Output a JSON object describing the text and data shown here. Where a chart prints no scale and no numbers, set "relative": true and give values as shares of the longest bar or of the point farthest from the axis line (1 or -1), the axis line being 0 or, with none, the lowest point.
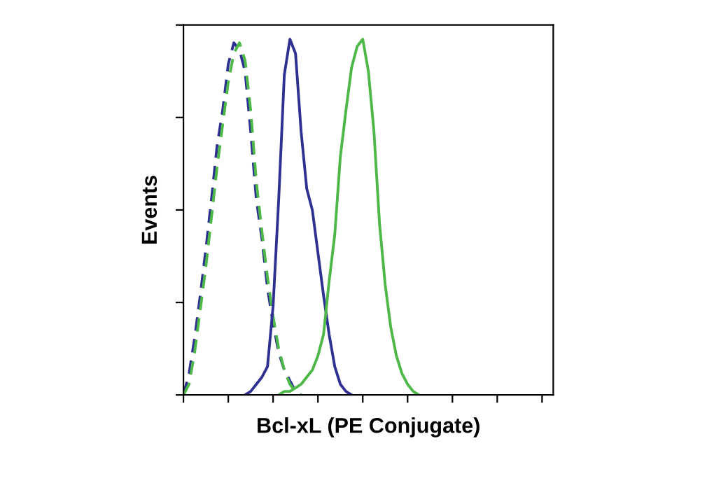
{
  "chart_data": {
    "type": "line",
    "relative": true,
    "xlabel": "Bcl-xL (PE Conjugate)",
    "ylabel": "Events",
    "categories": [
      null,
      null,
      null,
      null,
      null,
      null,
      null,
      null,
      null,
      null,
      null,
      null,
      null,
      null,
      null,
      null,
      null,
      null,
      null,
      null,
      null,
      null,
      null,
      null,
      null,
      null,
      null,
      null,
      null,
      null,
      null,
      null,
      null,
      null,
      null,
      null,
      null,
      null,
      null,
      null,
      null,
      null,
      null,
      null,
      null,
      null,
      null,
      null,
      null,
      null,
      null,
      null,
      null,
      null,
      null,
      null,
      null,
      null,
      null,
      null,
      null,
      null,
      null,
      null,
      null,
      null,
      null
    ],
    "series": [
      {
        "color": "#2e3192",
        "line_style": "dashed",
        "values": [
          0.0,
          0.06,
          0.16,
          0.28,
          0.41,
          0.55,
          0.7,
          0.8,
          0.93,
          0.99,
          0.97,
          0.91,
          0.74,
          0.55,
          0.44,
          0.3,
          0.2,
          0.12,
          0.07,
          0.04,
          0.01,
          0.0,
          null,
          null,
          null,
          null,
          null,
          null,
          null,
          null,
          null,
          null,
          null,
          null,
          null,
          null,
          null,
          null,
          null,
          null,
          null,
          null,
          null,
          null,
          null,
          null,
          null,
          null,
          null,
          null,
          null,
          null,
          null,
          null,
          null,
          null,
          null,
          null,
          null,
          null,
          null,
          null,
          null,
          null,
          null,
          null,
          null
        ]
      },
      {
        "color": "#4db848",
        "line_style": "dashed",
        "values": [
          0.0,
          0.03,
          0.12,
          0.24,
          0.36,
          0.5,
          0.64,
          0.76,
          0.88,
          0.96,
          0.99,
          0.94,
          0.8,
          0.6,
          0.46,
          0.33,
          0.22,
          0.13,
          0.07,
          0.03,
          0.01,
          0.0,
          null,
          null,
          null,
          null,
          null,
          null,
          null,
          null,
          null,
          null,
          null,
          null,
          null,
          null,
          null,
          null,
          null,
          null,
          null,
          null,
          null,
          null,
          null,
          null,
          null,
          null,
          null,
          null,
          null,
          null,
          null,
          null,
          null,
          null,
          null,
          null,
          null,
          null,
          null,
          null,
          null,
          null,
          null,
          null,
          null
        ]
      },
      {
        "color": "#2e3192",
        "line_style": "solid",
        "values": [
          null,
          null,
          null,
          null,
          null,
          null,
          null,
          null,
          null,
          null,
          null,
          0.0,
          0.01,
          0.03,
          0.05,
          0.08,
          0.25,
          0.55,
          0.9,
          1.0,
          0.96,
          0.74,
          0.58,
          0.52,
          0.4,
          0.28,
          0.17,
          0.08,
          0.03,
          0.01,
          0.0,
          null,
          null,
          null,
          null,
          null,
          null,
          null,
          null,
          null,
          null,
          null,
          null,
          null,
          null,
          null,
          null,
          null,
          null,
          null,
          null,
          null,
          null,
          null,
          null,
          null,
          null,
          null,
          null,
          null,
          null,
          null,
          null,
          null,
          null,
          null,
          null
        ]
      },
      {
        "color": "#4db848",
        "line_style": "solid",
        "values": [
          null,
          null,
          null,
          null,
          null,
          null,
          null,
          null,
          null,
          null,
          null,
          null,
          null,
          null,
          null,
          null,
          null,
          0.0,
          0.01,
          0.01,
          0.02,
          0.03,
          0.05,
          0.07,
          0.11,
          0.17,
          0.32,
          0.45,
          0.67,
          0.8,
          0.92,
          0.98,
          1.0,
          0.91,
          0.74,
          0.48,
          0.31,
          0.19,
          0.11,
          0.06,
          0.03,
          0.01,
          0.0,
          null,
          null,
          null,
          null,
          null,
          null,
          null,
          null,
          null,
          null,
          null,
          null,
          null,
          null,
          null,
          null,
          null,
          null,
          null,
          null,
          null,
          null,
          null,
          null
        ]
      }
    ]
  }
}
